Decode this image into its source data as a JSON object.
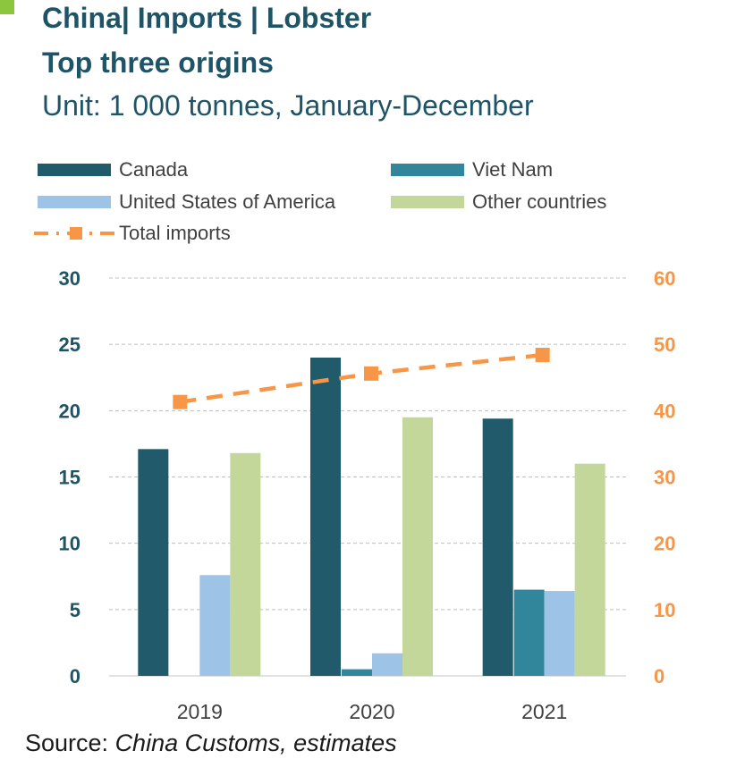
{
  "header": {
    "title": "China| Imports | Lobster",
    "subtitle": "Top three origins",
    "unit": "Unit: 1 000 tonnes, January-December"
  },
  "legend": {
    "canada": "Canada",
    "vietnam": "Viet Nam",
    "usa": "United States of America",
    "other": "Other countries",
    "total": "Total imports"
  },
  "source": {
    "prefix": "Source: ",
    "text": "China Customs, estimates"
  },
  "colors": {
    "canada": "#215a6a",
    "vietnam": "#31869b",
    "usa": "#9dc3e6",
    "other": "#c4d79b",
    "total": "#f79646",
    "title": "#1f5466"
  },
  "chart_data": {
    "type": "bar",
    "categories": [
      "2019",
      "2020",
      "2021"
    ],
    "series": [
      {
        "name": "Canada",
        "values": [
          17.1,
          24.0,
          19.4
        ],
        "axis": "left"
      },
      {
        "name": "Viet Nam",
        "values": [
          0,
          0.5,
          6.5
        ],
        "axis": "left"
      },
      {
        "name": "United States of America",
        "values": [
          7.6,
          1.7,
          6.4
        ],
        "axis": "left"
      },
      {
        "name": "Other countries",
        "values": [
          16.8,
          19.5,
          16.0
        ],
        "axis": "left"
      },
      {
        "name": "Total imports",
        "type": "line",
        "values": [
          41.3,
          45.6,
          48.4
        ],
        "axis": "right"
      }
    ],
    "y_left": {
      "lim": [
        0,
        30
      ],
      "ticks": [
        "0",
        "5",
        "10",
        "15",
        "20",
        "25",
        "30"
      ]
    },
    "y_right": {
      "lim": [
        0,
        60
      ],
      "ticks": [
        "0",
        "10",
        "20",
        "30",
        "40",
        "50",
        "60"
      ]
    },
    "grid": true,
    "legend_position": "top"
  }
}
